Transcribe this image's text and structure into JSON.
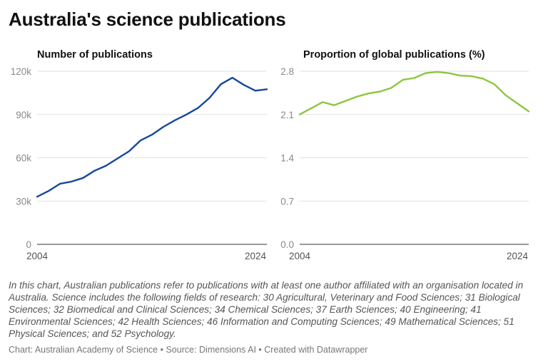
{
  "title": "Australia's science publications",
  "chart_data": [
    {
      "type": "line",
      "title": "Number of publications",
      "x": [
        2004,
        2005,
        2006,
        2007,
        2008,
        2009,
        2010,
        2011,
        2012,
        2013,
        2014,
        2015,
        2016,
        2017,
        2018,
        2019,
        2020,
        2021,
        2022,
        2023,
        2024
      ],
      "series": [
        {
          "values": [
            33000,
            37000,
            42000,
            43500,
            46000,
            51000,
            54500,
            59500,
            64500,
            72000,
            76000,
            81500,
            86000,
            90000,
            94500,
            101500,
            111000,
            115500,
            110500,
            106500,
            107500
          ]
        }
      ],
      "xlim": [
        2004,
        2024
      ],
      "ylim": [
        0,
        120000
      ],
      "x_tick_labels": [
        "2004",
        "2024"
      ],
      "y_ticks": [
        0,
        30000,
        60000,
        90000,
        120000
      ],
      "y_tick_labels": [
        "0",
        "30k",
        "60k",
        "90k",
        "120k"
      ],
      "color": "#15479e",
      "grid": true
    },
    {
      "type": "line",
      "title": "Proportion of global publications (%)",
      "x": [
        2004,
        2005,
        2006,
        2007,
        2008,
        2009,
        2010,
        2011,
        2012,
        2013,
        2014,
        2015,
        2016,
        2017,
        2018,
        2019,
        2020,
        2021,
        2022,
        2023,
        2024
      ],
      "series": [
        {
          "values": [
            2.1,
            2.2,
            2.3,
            2.25,
            2.32,
            2.39,
            2.44,
            2.47,
            2.53,
            2.66,
            2.69,
            2.77,
            2.79,
            2.77,
            2.73,
            2.72,
            2.68,
            2.59,
            2.41,
            2.28,
            2.15
          ]
        }
      ],
      "xlim": [
        2004,
        2024
      ],
      "ylim": [
        0,
        2.8
      ],
      "x_tick_labels": [
        "2004",
        "2024"
      ],
      "y_ticks": [
        0,
        0.7,
        1.4,
        2.1,
        2.8
      ],
      "y_tick_labels": [
        "0.0",
        "0.7",
        "1.4",
        "2.1",
        "2.8"
      ],
      "color": "#8dc63f",
      "grid": true
    }
  ],
  "note": "In this chart, Australian publications refer to publications with at least one author affiliated with an organisation located in Australia. Science includes the following fields of research: 30 Agricultural, Veterinary and Food Sciences; 31 Biological Sciences; 32 Biomedical and Clinical Sciences; 34 Chemical Sciences; 37 Earth Sciences; 40 Engineering; 41 Environmental Sciences; 42 Health Sciences; 46 Information and Computing Sciences; 49 Mathematical Sciences; 51 Physical Sciences; and 52 Psychology.",
  "footer": {
    "chart_credit": "Chart: Australian Academy of Science",
    "source": "Source: Dimensions AI",
    "tool": "Created with Datawrapper",
    "separator": " • "
  }
}
